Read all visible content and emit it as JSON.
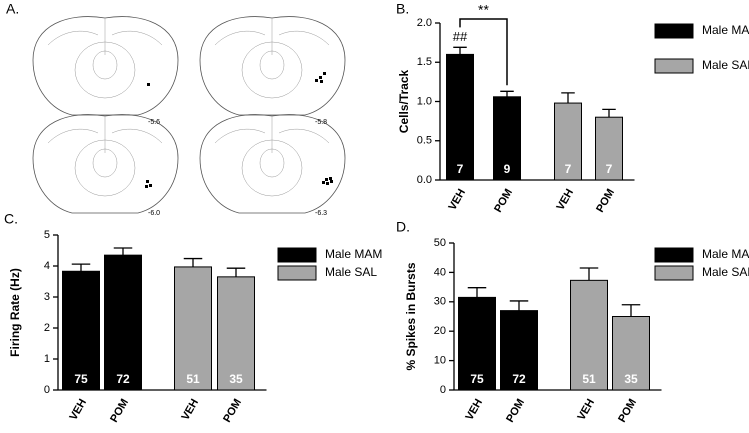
{
  "panel_a": {
    "label": "A.",
    "sections": [
      "-5.6",
      "-5.8",
      "-6.0",
      "-6.3"
    ]
  },
  "chart_data": [
    {
      "type": "bar",
      "panel": "B.",
      "ylabel": "Cells/Track",
      "categories": [
        "VEH",
        "POM"
      ],
      "series": [
        {
          "name": "Male MAM",
          "color": "#000000",
          "values": [
            1.6,
            1.06
          ],
          "errors": [
            0.09,
            0.07
          ],
          "n": [
            7,
            9
          ]
        },
        {
          "name": "Male SAL",
          "color": "#a6a6a6",
          "values": [
            0.98,
            0.8
          ],
          "errors": [
            0.13,
            0.1
          ],
          "n": [
            7,
            7
          ]
        }
      ],
      "ylim": [
        0,
        2
      ],
      "yticks": [
        {
          "value": 0,
          "label": "0.0"
        },
        {
          "value": 0.5,
          "label": "0.5"
        },
        {
          "value": 1,
          "label": "1.0"
        },
        {
          "value": 1.5,
          "label": "1.5"
        },
        {
          "value": 2,
          "label": "2.0"
        }
      ],
      "annotations": [
        "##",
        "**"
      ]
    },
    {
      "type": "bar",
      "panel": "C.",
      "ylabel": "Firing Rate (Hz)",
      "categories": [
        "VEH",
        "POM"
      ],
      "series": [
        {
          "name": "Male MAM",
          "color": "#000000",
          "values": [
            3.83,
            4.35
          ],
          "errors": [
            0.23,
            0.23
          ],
          "n": [
            75,
            72
          ]
        },
        {
          "name": "Male SAL",
          "color": "#a6a6a6",
          "values": [
            3.97,
            3.65
          ],
          "errors": [
            0.27,
            0.28
          ],
          "n": [
            51,
            35
          ]
        }
      ],
      "ylim": [
        0,
        5
      ],
      "yticks": [
        0,
        1,
        2,
        3,
        4,
        5
      ]
    },
    {
      "type": "bar",
      "panel": "D.",
      "ylabel": "% Spikes in Bursts",
      "categories": [
        "VEH",
        "POM"
      ],
      "series": [
        {
          "name": "Male MAM",
          "color": "#000000",
          "values": [
            31.5,
            27
          ],
          "errors": [
            3.3,
            3.3
          ],
          "n": [
            75,
            72
          ]
        },
        {
          "name": "Male SAL",
          "color": "#a6a6a6",
          "values": [
            37.3,
            25
          ],
          "errors": [
            4.2,
            4
          ],
          "n": [
            51,
            35
          ]
        }
      ],
      "ylim": [
        0,
        50
      ],
      "yticks": [
        0,
        10,
        20,
        30,
        40,
        50
      ]
    }
  ]
}
